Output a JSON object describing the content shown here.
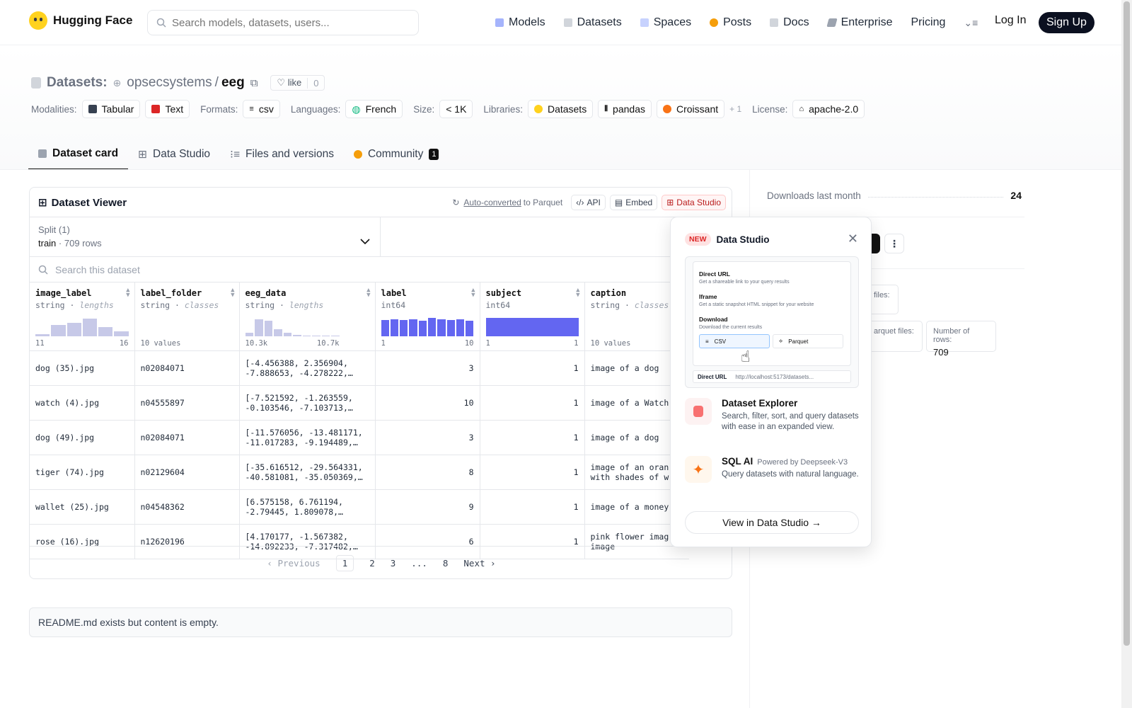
{
  "nav": {
    "brand": "Hugging Face",
    "search_placeholder": "Search models, datasets, users...",
    "links": [
      "Models",
      "Datasets",
      "Spaces",
      "Posts",
      "Docs",
      "Enterprise",
      "Pricing"
    ],
    "login": "Log In",
    "signup": "Sign Up"
  },
  "header": {
    "section": "Datasets:",
    "owner": "opsecsystems",
    "sep": "/",
    "repo": "eeg",
    "like_label": "like",
    "like_count": "0",
    "modalities_label": "Modalities:",
    "modalities": [
      "Tabular",
      "Text"
    ],
    "formats_label": "Formats:",
    "format": "csv",
    "languages_label": "Languages:",
    "language": "French",
    "size_label": "Size:",
    "size": "< 1K",
    "libraries_label": "Libraries:",
    "libraries": [
      "Datasets",
      "pandas",
      "Croissant"
    ],
    "libraries_more": "+ 1",
    "license_label": "License:",
    "license": "apache-2.0"
  },
  "tabs": [
    {
      "label": "Dataset card"
    },
    {
      "label": "Data Studio"
    },
    {
      "label": "Files and versions"
    },
    {
      "label": "Community",
      "count": "1"
    }
  ],
  "viewer": {
    "title": "Dataset Viewer",
    "auto_converted": "Auto-converted",
    "to_parquet": "to Parquet",
    "api": "API",
    "embed": "Embed",
    "data_studio": "Data Studio",
    "split_label": "Split (1)",
    "split_name": "train",
    "split_rows": "709 rows",
    "search_placeholder": "Search this dataset",
    "columns": [
      {
        "name": "image_label",
        "type": "string",
        "kind": "lengths",
        "min": "11",
        "max": "16"
      },
      {
        "name": "label_folder",
        "type": "string",
        "kind": "classes",
        "min": "10 values",
        "max": ""
      },
      {
        "name": "eeg_data",
        "type": "string",
        "kind": "lengths",
        "min": "10.3k",
        "max": "10.7k"
      },
      {
        "name": "label",
        "type": "int64",
        "kind": "",
        "min": "1",
        "max": "10"
      },
      {
        "name": "subject",
        "type": "int64",
        "kind": "",
        "min": "1",
        "max": "1"
      },
      {
        "name": "caption",
        "type": "string",
        "kind": "classes",
        "min": "10 values",
        "max": ""
      }
    ],
    "rows": [
      [
        "dog (35).jpg",
        "n02084071",
        "[-4.456388, 2.356904,",
        "-7.888653, -4.278222,…",
        "3",
        "1",
        "image of a dog",
        ""
      ],
      [
        "watch (4).jpg",
        "n04555897",
        "[-7.521592, -1.263559,",
        "-0.103546, -7.103713,…",
        "10",
        "1",
        "image of a Watch",
        ""
      ],
      [
        "dog (49).jpg",
        "n02084071",
        "[-11.576056, -13.481171,",
        "-11.017283, -9.194489,…",
        "3",
        "1",
        "image of a dog",
        ""
      ],
      [
        "tiger (74).jpg",
        "n02129604",
        "[-35.616512, -29.564331,",
        "-40.581081, -35.050369,…",
        "8",
        "1",
        "image of an oran",
        "with shades of w"
      ],
      [
        "wallet (25).jpg",
        "n04548362",
        "[6.575158, 6.761194,",
        "-2.79445, 1.809078,…",
        "9",
        "1",
        "image of a money",
        ""
      ],
      [
        "rose (16).jpg",
        "n12620196",
        "[4.170177, -1.567382,",
        "-14.892233, -7.317482,…",
        "6",
        "1",
        "pink flower imag",
        "image"
      ]
    ],
    "pager": {
      "prev": "Previous",
      "pages": [
        "1",
        "2",
        "3",
        "...",
        "8"
      ],
      "next": "Next"
    }
  },
  "readme": "README.md exists but content is empty.",
  "sidebar": {
    "downloads_label": "Downloads last month",
    "downloads_value": "24",
    "files_label": "files:",
    "parquet_label": "arquet files:",
    "rows_label": "Number of rows:",
    "rows_value": "709"
  },
  "popup": {
    "badge": "NEW",
    "title": "Data Studio",
    "preview": {
      "direct_url": "Direct URL",
      "direct_url_desc": "Get a shareable link to your query results",
      "iframe": "Iframe",
      "iframe_desc": "Get a static snapshot HTML snippet for your website",
      "download": "Download",
      "download_desc": "Download the current results",
      "csv": "CSV",
      "parquet": "Parquet",
      "url_select": "Direct URL",
      "url_value": "http://localhost:5173/datasets..."
    },
    "explorer_title": "Dataset Explorer",
    "explorer_desc": "Search, filter, sort, and query datasets with ease in an expanded view.",
    "sql_title": "SQL AI",
    "sql_powered": "Powered by Deepseek-V3",
    "sql_desc": "Query datasets with natural language.",
    "cta": "View in Data Studio →"
  },
  "colors": {
    "accent": "#6366f1",
    "brand": "#ffd21e",
    "danger": "#dc2626"
  }
}
